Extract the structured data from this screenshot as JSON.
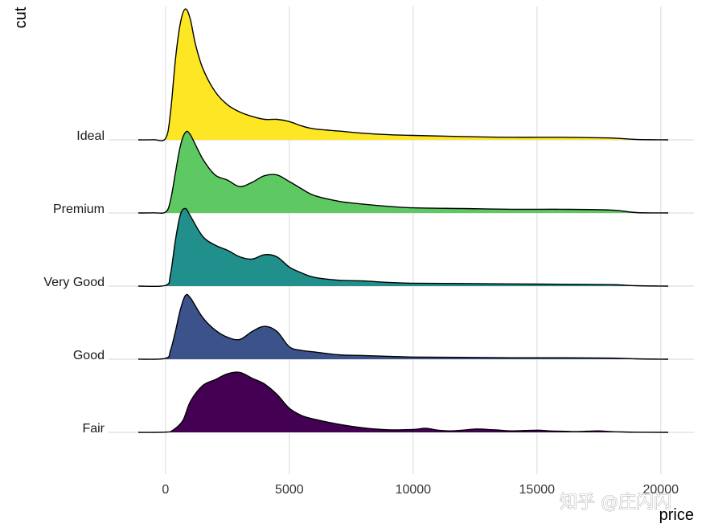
{
  "chart_data": {
    "type": "ridgeline",
    "xlabel": "price",
    "ylabel": "cut",
    "xlim": [
      -1100,
      20300
    ],
    "x_ticks": [
      0,
      5000,
      10000,
      15000,
      20000
    ],
    "x_tick_labels": [
      "0",
      "5000",
      "10000",
      "15000",
      "20000"
    ],
    "grid": true,
    "categories": [
      "Fair",
      "Good",
      "Very Good",
      "Premium",
      "Ideal"
    ],
    "series": [
      {
        "name": "Fair",
        "color": "#440154",
        "x": [
          -1100,
          0,
          300,
          700,
          1000,
          1500,
          2000,
          2500,
          3000,
          3500,
          4000,
          4500,
          5000,
          5500,
          6000,
          7000,
          8000,
          9000,
          10000,
          10500,
          11000,
          11500,
          12000,
          12500,
          13000,
          13500,
          14000,
          15000,
          15500,
          16000,
          16500,
          17000,
          17500,
          18000,
          18500,
          19000,
          20300
        ],
        "y": [
          0,
          0.003,
          0.03,
          0.16,
          0.42,
          0.64,
          0.72,
          0.8,
          0.82,
          0.74,
          0.66,
          0.52,
          0.33,
          0.23,
          0.18,
          0.11,
          0.06,
          0.035,
          0.04,
          0.055,
          0.03,
          0.02,
          0.03,
          0.045,
          0.04,
          0.03,
          0.02,
          0.03,
          0.02,
          0.015,
          0.01,
          0.015,
          0.02,
          0.01,
          0.005,
          0.002,
          0
        ]
      },
      {
        "name": "Good",
        "color": "#3b528b",
        "x": [
          -1100,
          0,
          200,
          400,
          600,
          800,
          1000,
          1500,
          2000,
          2500,
          3000,
          3500,
          4000,
          4500,
          5000,
          5500,
          6000,
          7000,
          8000,
          9000,
          10000,
          12000,
          14000,
          16000,
          18000,
          19000,
          20300
        ],
        "y": [
          0,
          0.012,
          0.12,
          0.38,
          0.68,
          0.87,
          0.84,
          0.57,
          0.4,
          0.3,
          0.27,
          0.38,
          0.45,
          0.38,
          0.17,
          0.12,
          0.1,
          0.06,
          0.05,
          0.04,
          0.03,
          0.025,
          0.02,
          0.02,
          0.015,
          0.005,
          0
        ]
      },
      {
        "name": "Very Good",
        "color": "#21908c",
        "x": [
          -1100,
          0,
          200,
          400,
          600,
          800,
          1000,
          1500,
          2000,
          2500,
          3000,
          3500,
          4000,
          4500,
          5000,
          5500,
          6000,
          7000,
          8000,
          9000,
          10000,
          12000,
          14000,
          16000,
          18000,
          19000,
          20300
        ],
        "y": [
          0,
          0.01,
          0.16,
          0.63,
          0.98,
          1.06,
          0.96,
          0.68,
          0.56,
          0.49,
          0.4,
          0.37,
          0.43,
          0.4,
          0.26,
          0.18,
          0.12,
          0.08,
          0.07,
          0.05,
          0.04,
          0.035,
          0.03,
          0.025,
          0.02,
          0.005,
          0
        ]
      },
      {
        "name": "Premium",
        "color": "#5ec962",
        "x": [
          -1100,
          -500,
          0,
          200,
          400,
          600,
          800,
          1000,
          1500,
          2000,
          2500,
          3000,
          3500,
          4000,
          4500,
          5000,
          5500,
          6000,
          7000,
          8000,
          9000,
          10000,
          12000,
          14000,
          16000,
          18000,
          19000,
          20300
        ],
        "y": [
          0,
          0.002,
          0.012,
          0.17,
          0.55,
          0.92,
          1.1,
          1.07,
          0.74,
          0.52,
          0.45,
          0.36,
          0.42,
          0.51,
          0.52,
          0.43,
          0.33,
          0.24,
          0.16,
          0.12,
          0.09,
          0.07,
          0.06,
          0.05,
          0.05,
          0.04,
          0.005,
          0
        ]
      },
      {
        "name": "Ideal",
        "color": "#fde725",
        "x": [
          -1100,
          -500,
          0,
          200,
          400,
          600,
          800,
          1000,
          1200,
          1500,
          2000,
          2500,
          3000,
          3500,
          4000,
          4500,
          5000,
          5500,
          6000,
          7000,
          8000,
          9000,
          10000,
          12000,
          14000,
          16000,
          18000,
          19000,
          20300
        ],
        "y": [
          0,
          0.002,
          0.02,
          0.37,
          1.1,
          1.6,
          1.79,
          1.65,
          1.32,
          0.98,
          0.66,
          0.48,
          0.38,
          0.32,
          0.28,
          0.28,
          0.25,
          0.19,
          0.15,
          0.12,
          0.09,
          0.07,
          0.06,
          0.045,
          0.035,
          0.035,
          0.025,
          0.005,
          0
        ]
      }
    ]
  },
  "watermark": {
    "text": "知乎 @庄闪闪"
  }
}
